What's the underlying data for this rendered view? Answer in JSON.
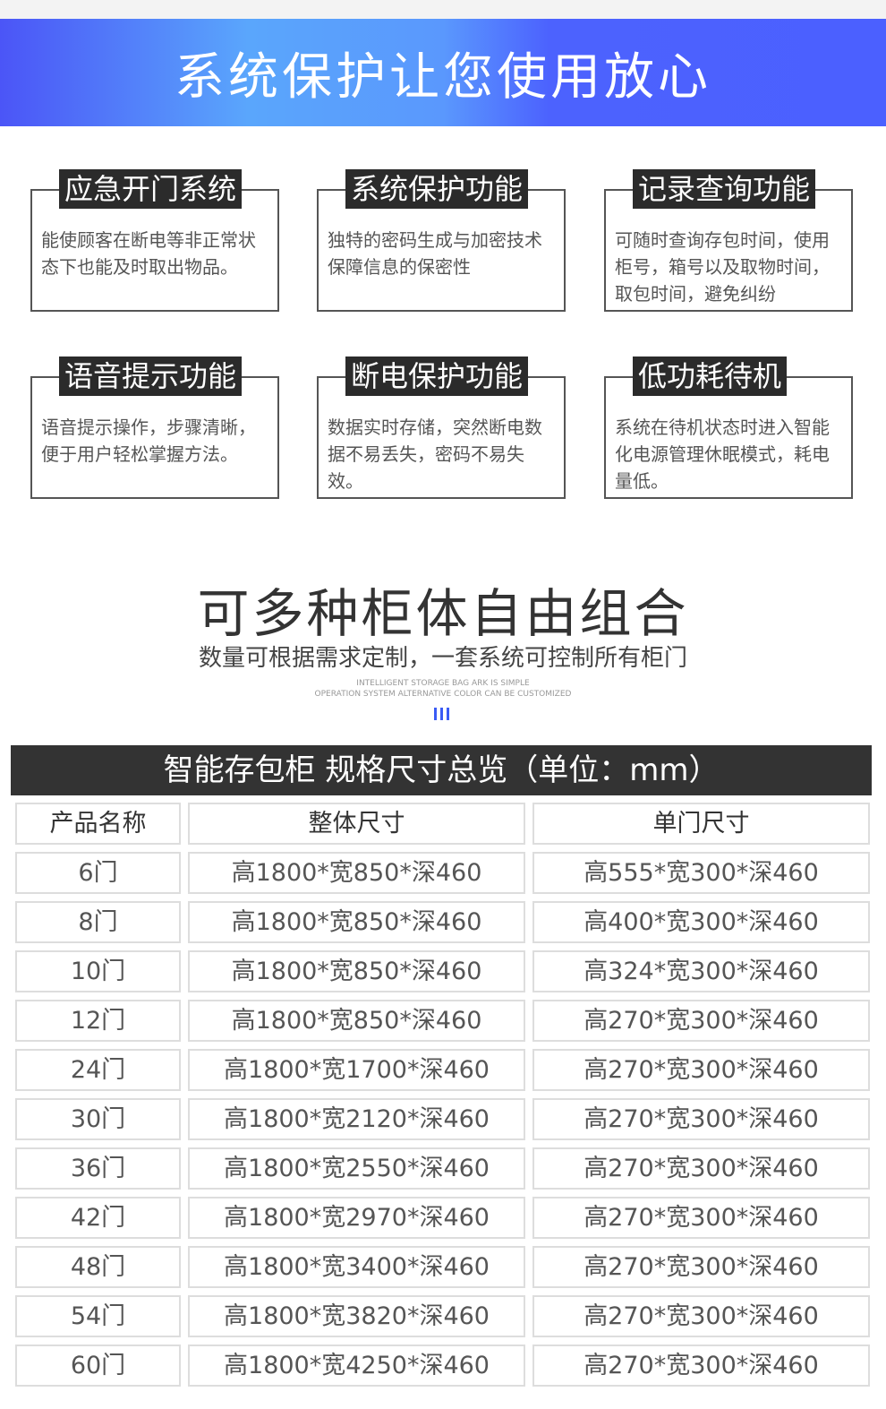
{
  "banner": {
    "title": "系统保护让您使用放心",
    "colors": {
      "start": "#4b55f7",
      "mid": "#5aa6fc",
      "end": "#4b60ff"
    }
  },
  "features": [
    {
      "title": "应急开门系统",
      "text": "能使顾客在断电等非正常状态下也能及时取出物品。"
    },
    {
      "title": "系统保护功能",
      "text": "独特的密码生成与加密技术保障信息的保密性"
    },
    {
      "title": "记录查询功能",
      "text": "可随时查询存包时间，使用柜号，箱号以及取物时间，取包时间，避免纠纷"
    },
    {
      "title": "语音提示功能",
      "text": "语音提示操作，步骤清晰，便于用户轻松掌握方法。"
    },
    {
      "title": "断电保护功能",
      "text": "数据实时存储，突然断电数据不易丢失，密码不易失效。"
    },
    {
      "title": "低功耗待机",
      "text": "系统在待机状态时进入智能化电源管理休眠模式，耗电量低。"
    }
  ],
  "combo": {
    "title": "可多种柜体自由组合",
    "subtitle": "数量可根据需求定制，一套系统可控制所有柜门",
    "en_line1": "INTELLIGENT STORAGE BAG ARK IS SIMPLE",
    "en_line2": "OPERATION SYSTEM ALTERNATIVE COLOR CAN BE CUSTOMIZED"
  },
  "table": {
    "title": "智能存包柜 规格尺寸总览（单位：mm）",
    "headers": [
      "产品名称",
      "整体尺寸",
      "单门尺寸"
    ],
    "rows": [
      [
        "6门",
        "高1800*宽850*深460",
        "高555*宽300*深460"
      ],
      [
        "8门",
        "高1800*宽850*深460",
        "高400*宽300*深460"
      ],
      [
        "10门",
        "高1800*宽850*深460",
        "高324*宽300*深460"
      ],
      [
        "12门",
        "高1800*宽850*深460",
        "高270*宽300*深460"
      ],
      [
        "24门",
        "高1800*宽1700*深460",
        "高270*宽300*深460"
      ],
      [
        "30门",
        "高1800*宽2120*深460",
        "高270*宽300*深460"
      ],
      [
        "36门",
        "高1800*宽2550*深460",
        "高270*宽300*深460"
      ],
      [
        "42门",
        "高1800*宽2970*深460",
        "高270*宽300*深460"
      ],
      [
        "48门",
        "高1800*宽3400*深460",
        "高270*宽300*深460"
      ],
      [
        "54门",
        "高1800*宽3820*深460",
        "高270*宽300*深460"
      ],
      [
        "60门",
        "高1800*宽4250*深460",
        "高270*宽300*深460"
      ]
    ]
  }
}
